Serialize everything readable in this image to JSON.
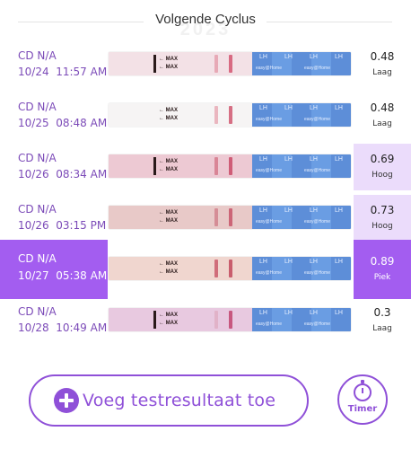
{
  "header": {
    "title": "Volgende Cyclus",
    "ghost_text": "2023"
  },
  "strip_text": {
    "max_label": "MAX",
    "lh_label": "LH",
    "brand_label": "easy@Home"
  },
  "rows": [
    {
      "cd": "CD N/A",
      "datetime": "10/24  11:57 AM",
      "value": "0.48",
      "level": "Laag",
      "strip_color": "#f3e1e6",
      "t_color": "#e7a9b6",
      "c_color": "#d86a82",
      "max_dark": true
    },
    {
      "cd": "CD N/A",
      "datetime": "10/25  08:48 AM",
      "value": "0.48",
      "level": "Laag",
      "strip_color": "#f6f4f4",
      "t_color": "#eab6bf",
      "c_color": "#d66f84",
      "max_dark": false
    },
    {
      "cd": "CD N/A",
      "datetime": "10/26  08:34 AM",
      "value": "0.69",
      "level": "Hoog",
      "strip_color": "#edc9d3",
      "t_color": "#d98596",
      "c_color": "#cf5d77",
      "max_dark": true
    },
    {
      "cd": "CD N/A",
      "datetime": "10/26  03:15 PM",
      "value": "0.73",
      "level": "Hoog",
      "strip_color": "#e8c9c8",
      "t_color": "#d58d96",
      "c_color": "#cc6577",
      "max_dark": false
    },
    {
      "cd": "CD N/A",
      "datetime": "10/27  05:38 AM",
      "value": "0.89",
      "level": "Piek",
      "strip_color": "#f0d6cf",
      "t_color": "#d06d7a",
      "c_color": "#c95d6d",
      "max_dark": false
    },
    {
      "cd": "CD N/A",
      "datetime": "10/28  10:49 AM",
      "value": "0.3",
      "level": "Laag",
      "strip_color": "#e8c9e0",
      "t_color": "#e1b2c8",
      "c_color": "#c7577f",
      "max_dark": true
    }
  ],
  "actions": {
    "add_label": "Voeg testresultaat toe",
    "timer_label": "Timer"
  },
  "colors": {
    "accent": "#8f50d8",
    "active": "#a35df0",
    "high_bg": "#ebdcfb"
  }
}
